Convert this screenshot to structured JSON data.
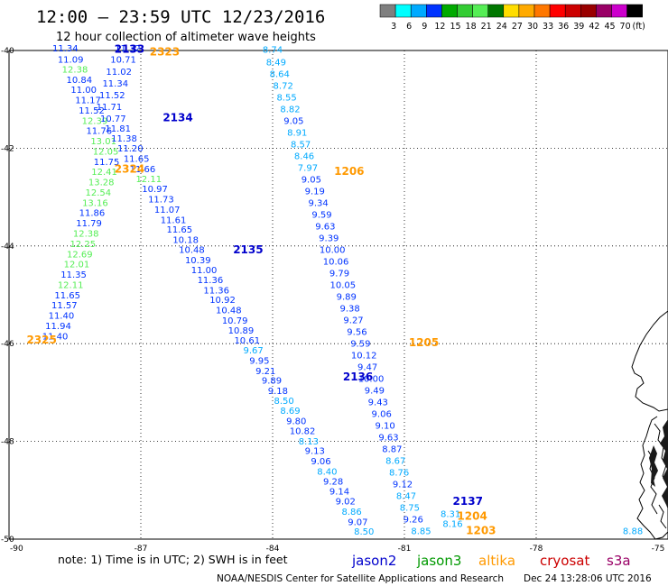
{
  "title": "12:00 – 23:59 UTC 12/23/2016",
  "subtitle": "12 hour collection of altimeter wave heights",
  "colorbar": {
    "colors": [
      "#7f7f7f",
      "#00ffff",
      "#00aaff",
      "#0033ff",
      "#00aa00",
      "#33cc33",
      "#55ee55",
      "#007700",
      "#ffdd00",
      "#ffaa00",
      "#ff7700",
      "#ff0000",
      "#cc0000",
      "#990000",
      "#990066",
      "#cc00cc",
      "#000000"
    ],
    "labels": [
      "3",
      "6",
      "9",
      "12",
      "15",
      "18",
      "21",
      "24",
      "27",
      "30",
      "33",
      "36",
      "39",
      "42",
      "45",
      "70",
      "(ft)"
    ]
  },
  "note": "note: 1) Time is in UTC; 2) SWH is in feet",
  "legend": [
    {
      "label": "jason2",
      "color": "#0000cc"
    },
    {
      "label": "jason3",
      "color": "#009900"
    },
    {
      "label": "altika",
      "color": "#ff9900"
    },
    {
      "label": "cryosat",
      "color": "#cc0000"
    },
    {
      "label": "s3a",
      "color": "#990066"
    }
  ],
  "credit": "NOAA/NESDIS Center for Satellite Applications and Research",
  "timestamp": "Dec 24 13:28:06 UTC 2016",
  "chart_data": {
    "type": "scatter",
    "xlim": [
      -90,
      -75
    ],
    "ylim": [
      -50,
      -40
    ],
    "x_ticks": [
      -90,
      -87,
      -84,
      -81,
      -78,
      -75
    ],
    "y_ticks": [
      -40,
      -42,
      -44,
      -46,
      -48,
      -50
    ],
    "x_tick_labels": [
      "-90",
      "-87",
      "-84",
      "-81",
      "-78",
      "-75"
    ],
    "y_tick_labels": [
      "-40",
      "-42",
      "-44",
      "-46",
      "-48",
      "-50"
    ],
    "grid": true,
    "pass_labels": [
      {
        "label": "2133",
        "sat": "jason2",
        "lon": -87.6,
        "lat": -40.05
      },
      {
        "label": "2323",
        "sat": "altika",
        "lon": -86.8,
        "lat": -40.1
      },
      {
        "label": "2134",
        "sat": "jason2",
        "lon": -86.5,
        "lat": -41.45
      },
      {
        "label": "2324",
        "sat": "altika",
        "lon": -87.6,
        "lat": -42.5
      },
      {
        "label": "1206",
        "sat": "altika",
        "lon": -82.6,
        "lat": -42.55
      },
      {
        "label": "2135",
        "sat": "jason2",
        "lon": -84.9,
        "lat": -44.15
      },
      {
        "label": "2325",
        "sat": "altika",
        "lon": -89.6,
        "lat": -46.0
      },
      {
        "label": "1205",
        "sat": "altika",
        "lon": -80.9,
        "lat": -46.05
      },
      {
        "label": "2136",
        "sat": "jason2",
        "lon": -82.4,
        "lat": -46.75
      },
      {
        "label": "2137",
        "sat": "jason2",
        "lon": -79.9,
        "lat": -49.3
      },
      {
        "label": "1204",
        "sat": "altika",
        "lon": -79.8,
        "lat": -49.6
      },
      {
        "label": "1203",
        "sat": "altika",
        "lon": -79.6,
        "lat": -49.9
      }
    ],
    "points": [
      {
        "sat": "jason2",
        "lon": -88.72,
        "lat": -40.02,
        "swh": "11.34",
        "color": "#0033ff"
      },
      {
        "sat": "jason2",
        "lon": -88.6,
        "lat": -40.25,
        "swh": "11.09",
        "color": "#0033ff"
      },
      {
        "sat": "jason3",
        "lon": -88.5,
        "lat": -40.45,
        "swh": "12.38",
        "color": "#55ee55"
      },
      {
        "sat": "jason2",
        "lon": -88.4,
        "lat": -40.66,
        "swh": "10.84",
        "color": "#0033ff"
      },
      {
        "sat": "jason2",
        "lon": -88.3,
        "lat": -40.87,
        "swh": "11.00",
        "color": "#0033ff"
      },
      {
        "sat": "jason2",
        "lon": -88.2,
        "lat": -41.08,
        "swh": "11.17",
        "color": "#0033ff"
      },
      {
        "sat": "jason2",
        "lon": -88.12,
        "lat": -41.29,
        "swh": "11.52",
        "color": "#0033ff"
      },
      {
        "sat": "jason3",
        "lon": -88.05,
        "lat": -41.5,
        "swh": "12.39",
        "color": "#55ee55"
      },
      {
        "sat": "jason2",
        "lon": -87.95,
        "lat": -41.71,
        "swh": "11.76",
        "color": "#0033ff"
      },
      {
        "sat": "jason3",
        "lon": -87.85,
        "lat": -41.92,
        "swh": "13.01",
        "color": "#55ee55"
      },
      {
        "sat": "jason3",
        "lon": -87.8,
        "lat": -42.13,
        "swh": "12.05",
        "color": "#55ee55"
      },
      {
        "sat": "jason2",
        "lon": -87.78,
        "lat": -42.34,
        "swh": "11.75",
        "color": "#0033ff"
      },
      {
        "sat": "jason3",
        "lon": -87.83,
        "lat": -42.55,
        "swh": "12.41",
        "color": "#55ee55"
      },
      {
        "sat": "jason3",
        "lon": -87.9,
        "lat": -42.76,
        "swh": "13.28",
        "color": "#55ee55"
      },
      {
        "sat": "jason3",
        "lon": -87.97,
        "lat": -42.97,
        "swh": "12.54",
        "color": "#55ee55"
      },
      {
        "sat": "jason3",
        "lon": -88.04,
        "lat": -43.18,
        "swh": "13.16",
        "color": "#55ee55"
      },
      {
        "sat": "jason2",
        "lon": -88.11,
        "lat": -43.39,
        "swh": "11.86",
        "color": "#0033ff"
      },
      {
        "sat": "jason2",
        "lon": -88.18,
        "lat": -43.6,
        "swh": "11.79",
        "color": "#0033ff"
      },
      {
        "sat": "jason3",
        "lon": -88.25,
        "lat": -43.81,
        "swh": "12.38",
        "color": "#55ee55"
      },
      {
        "sat": "jason3",
        "lon": -88.32,
        "lat": -44.02,
        "swh": "12.25",
        "color": "#55ee55"
      },
      {
        "sat": "jason3",
        "lon": -88.39,
        "lat": -44.23,
        "swh": "12.69",
        "color": "#55ee55"
      },
      {
        "sat": "jason3",
        "lon": -88.46,
        "lat": -44.44,
        "swh": "12.01",
        "color": "#55ee55"
      },
      {
        "sat": "jason2",
        "lon": -88.53,
        "lat": -44.65,
        "swh": "11.35",
        "color": "#0033ff"
      },
      {
        "sat": "jason3",
        "lon": -88.6,
        "lat": -44.86,
        "swh": "12.11",
        "color": "#55ee55"
      },
      {
        "sat": "jason2",
        "lon": -88.67,
        "lat": -45.07,
        "swh": "11.65",
        "color": "#0033ff"
      },
      {
        "sat": "jason2",
        "lon": -88.74,
        "lat": -45.28,
        "swh": "11.57",
        "color": "#0033ff"
      },
      {
        "sat": "jason2",
        "lon": -88.81,
        "lat": -45.49,
        "swh": "11.40",
        "color": "#0033ff"
      },
      {
        "sat": "jason2",
        "lon": -88.88,
        "lat": -45.7,
        "swh": "11.94",
        "color": "#0033ff"
      },
      {
        "sat": "jason2",
        "lon": -88.95,
        "lat": -45.91,
        "swh": "11.40",
        "color": "#0033ff"
      },
      {
        "sat": "jason2",
        "lon": -87.3,
        "lat": -40.02,
        "swh": "11.32",
        "color": "#0033ff"
      },
      {
        "sat": "jason2",
        "lon": -87.4,
        "lat": -40.25,
        "swh": "10.71",
        "color": "#0033ff"
      },
      {
        "sat": "jason2",
        "lon": -87.5,
        "lat": -40.5,
        "swh": "11.02",
        "color": "#0033ff"
      },
      {
        "sat": "jason2",
        "lon": -87.58,
        "lat": -40.74,
        "swh": "11.34",
        "color": "#0033ff"
      },
      {
        "sat": "jason2",
        "lon": -87.65,
        "lat": -40.98,
        "swh": "11.52",
        "color": "#0033ff"
      },
      {
        "sat": "jason2",
        "lon": -87.72,
        "lat": -41.22,
        "swh": "11.71",
        "color": "#0033ff"
      },
      {
        "sat": "jason2",
        "lon": -87.63,
        "lat": -41.46,
        "swh": "10.77",
        "color": "#0033ff"
      },
      {
        "sat": "jason2",
        "lon": -87.52,
        "lat": -41.66,
        "swh": "11.81",
        "color": "#0033ff"
      },
      {
        "sat": "jason2",
        "lon": -87.38,
        "lat": -41.86,
        "swh": "11.38",
        "color": "#0033ff"
      },
      {
        "sat": "jason2",
        "lon": -87.24,
        "lat": -42.07,
        "swh": "11.20",
        "color": "#0033ff"
      },
      {
        "sat": "jason2",
        "lon": -87.1,
        "lat": -42.28,
        "swh": "11.65",
        "color": "#0033ff"
      },
      {
        "sat": "jason2",
        "lon": -86.96,
        "lat": -42.49,
        "swh": "11.66",
        "color": "#0033ff"
      },
      {
        "sat": "jason3",
        "lon": -86.82,
        "lat": -42.69,
        "swh": "12.11",
        "color": "#55ee55"
      },
      {
        "sat": "jason2",
        "lon": -86.68,
        "lat": -42.9,
        "swh": "10.97",
        "color": "#0033ff"
      },
      {
        "sat": "jason2",
        "lon": -86.54,
        "lat": -43.11,
        "swh": "11.73",
        "color": "#0033ff"
      },
      {
        "sat": "jason2",
        "lon": -86.4,
        "lat": -43.32,
        "swh": "11.07",
        "color": "#0033ff"
      },
      {
        "sat": "jason2",
        "lon": -86.26,
        "lat": -43.53,
        "swh": "11.61",
        "color": "#0033ff"
      },
      {
        "sat": "jason2",
        "lon": -86.12,
        "lat": -43.73,
        "swh": "11.65",
        "color": "#0033ff"
      },
      {
        "sat": "jason2",
        "lon": -85.98,
        "lat": -43.94,
        "swh": "10.18",
        "color": "#0033ff"
      },
      {
        "sat": "jason2",
        "lon": -85.84,
        "lat": -44.14,
        "swh": "10.48",
        "color": "#0033ff"
      },
      {
        "sat": "jason2",
        "lon": -85.7,
        "lat": -44.35,
        "swh": "10.39",
        "color": "#0033ff"
      },
      {
        "sat": "jason2",
        "lon": -85.56,
        "lat": -44.56,
        "swh": "11.00",
        "color": "#0033ff"
      },
      {
        "sat": "jason2",
        "lon": -85.42,
        "lat": -44.76,
        "swh": "11.36",
        "color": "#0033ff"
      },
      {
        "sat": "jason2",
        "lon": -85.28,
        "lat": -44.97,
        "swh": "11.36",
        "color": "#0033ff"
      },
      {
        "sat": "jason2",
        "lon": -85.14,
        "lat": -45.17,
        "swh": "10.92",
        "color": "#0033ff"
      },
      {
        "sat": "jason2",
        "lon": -85.0,
        "lat": -45.38,
        "swh": "10.48",
        "color": "#0033ff"
      },
      {
        "sat": "jason2",
        "lon": -84.86,
        "lat": -45.59,
        "swh": "10.79",
        "color": "#0033ff"
      },
      {
        "sat": "jason2",
        "lon": -84.72,
        "lat": -45.79,
        "swh": "10.89",
        "color": "#0033ff"
      },
      {
        "sat": "jason2",
        "lon": -84.58,
        "lat": -46.0,
        "swh": "10.61",
        "color": "#0033ff"
      },
      {
        "sat": "altika",
        "lon": -84.44,
        "lat": -46.2,
        "swh": "9.67",
        "color": "#00aaff"
      },
      {
        "sat": "jason2",
        "lon": -84.3,
        "lat": -46.41,
        "swh": "9.95",
        "color": "#0033ff"
      },
      {
        "sat": "jason2",
        "lon": -84.16,
        "lat": -46.62,
        "swh": "9.21",
        "color": "#0033ff"
      },
      {
        "sat": "jason2",
        "lon": -84.02,
        "lat": -46.82,
        "swh": "9.89",
        "color": "#0033ff"
      },
      {
        "sat": "jason2",
        "lon": -83.88,
        "lat": -47.03,
        "swh": "9.18",
        "color": "#0033ff"
      },
      {
        "sat": "altika",
        "lon": -83.74,
        "lat": -47.23,
        "swh": "8.50",
        "color": "#00aaff"
      },
      {
        "sat": "altika",
        "lon": -83.6,
        "lat": -47.44,
        "swh": "8.69",
        "color": "#00aaff"
      },
      {
        "sat": "jason2",
        "lon": -83.46,
        "lat": -47.65,
        "swh": "9.80",
        "color": "#0033ff"
      },
      {
        "sat": "jason2",
        "lon": -83.32,
        "lat": -47.85,
        "swh": "10.82",
        "color": "#0033ff"
      },
      {
        "sat": "altika",
        "lon": -83.18,
        "lat": -48.06,
        "swh": "8.13",
        "color": "#00aaff"
      },
      {
        "sat": "jason2",
        "lon": -83.04,
        "lat": -48.26,
        "swh": "9.13",
        "color": "#0033ff"
      },
      {
        "sat": "jason2",
        "lon": -82.9,
        "lat": -48.47,
        "swh": "9.06",
        "color": "#0033ff"
      },
      {
        "sat": "altika",
        "lon": -82.76,
        "lat": -48.68,
        "swh": "8.40",
        "color": "#00aaff"
      },
      {
        "sat": "jason2",
        "lon": -82.62,
        "lat": -48.88,
        "swh": "9.28",
        "color": "#0033ff"
      },
      {
        "sat": "jason2",
        "lon": -82.48,
        "lat": -49.09,
        "swh": "9.14",
        "color": "#0033ff"
      },
      {
        "sat": "jason2",
        "lon": -82.34,
        "lat": -49.29,
        "swh": "9.02",
        "color": "#0033ff"
      },
      {
        "sat": "altika",
        "lon": -82.2,
        "lat": -49.5,
        "swh": "8.86",
        "color": "#00aaff"
      },
      {
        "sat": "jason2",
        "lon": -82.06,
        "lat": -49.71,
        "swh": "9.07",
        "color": "#0033ff"
      },
      {
        "sat": "altika",
        "lon": -81.92,
        "lat": -49.91,
        "swh": "8.50",
        "color": "#00aaff"
      },
      {
        "sat": "altika",
        "lon": -84.0,
        "lat": -40.05,
        "swh": "8.74",
        "color": "#00aaff"
      },
      {
        "sat": "altika",
        "lon": -83.92,
        "lat": -40.3,
        "swh": "8.49",
        "color": "#00aaff"
      },
      {
        "sat": "altika",
        "lon": -83.84,
        "lat": -40.54,
        "swh": "8.64",
        "color": "#00aaff"
      },
      {
        "sat": "altika",
        "lon": -83.76,
        "lat": -40.78,
        "swh": "8.72",
        "color": "#00aaff"
      },
      {
        "sat": "altika",
        "lon": -83.68,
        "lat": -41.02,
        "swh": "8.55",
        "color": "#00aaff"
      },
      {
        "sat": "altika",
        "lon": -83.6,
        "lat": -41.26,
        "swh": "8.82",
        "color": "#00aaff"
      },
      {
        "sat": "jason2",
        "lon": -83.52,
        "lat": -41.5,
        "swh": "9.05",
        "color": "#0033ff"
      },
      {
        "sat": "altika",
        "lon": -83.44,
        "lat": -41.74,
        "swh": "8.91",
        "color": "#00aaff"
      },
      {
        "sat": "altika",
        "lon": -83.36,
        "lat": -41.98,
        "swh": "8.57",
        "color": "#00aaff"
      },
      {
        "sat": "altika",
        "lon": -83.28,
        "lat": -42.22,
        "swh": "8.46",
        "color": "#00aaff"
      },
      {
        "sat": "altika",
        "lon": -83.2,
        "lat": -42.46,
        "swh": "7.97",
        "color": "#00aaff"
      },
      {
        "sat": "jason2",
        "lon": -83.12,
        "lat": -42.7,
        "swh": "9.05",
        "color": "#0033ff"
      },
      {
        "sat": "jason2",
        "lon": -83.04,
        "lat": -42.94,
        "swh": "9.19",
        "color": "#0033ff"
      },
      {
        "sat": "jason2",
        "lon": -82.96,
        "lat": -43.18,
        "swh": "9.34",
        "color": "#0033ff"
      },
      {
        "sat": "jason2",
        "lon": -82.88,
        "lat": -43.42,
        "swh": "9.59",
        "color": "#0033ff"
      },
      {
        "sat": "jason2",
        "lon": -82.8,
        "lat": -43.66,
        "swh": "9.63",
        "color": "#0033ff"
      },
      {
        "sat": "jason2",
        "lon": -82.72,
        "lat": -43.9,
        "swh": "9.39",
        "color": "#0033ff"
      },
      {
        "sat": "jason2",
        "lon": -82.64,
        "lat": -44.14,
        "swh": "10.00",
        "color": "#0033ff"
      },
      {
        "sat": "jason2",
        "lon": -82.56,
        "lat": -44.38,
        "swh": "10.06",
        "color": "#0033ff"
      },
      {
        "sat": "jason2",
        "lon": -82.48,
        "lat": -44.62,
        "swh": "9.79",
        "color": "#0033ff"
      },
      {
        "sat": "jason2",
        "lon": -82.4,
        "lat": -44.86,
        "swh": "10.05",
        "color": "#0033ff"
      },
      {
        "sat": "jason2",
        "lon": -82.32,
        "lat": -45.1,
        "swh": "9.89",
        "color": "#0033ff"
      },
      {
        "sat": "jason2",
        "lon": -82.24,
        "lat": -45.34,
        "swh": "9.38",
        "color": "#0033ff"
      },
      {
        "sat": "jason2",
        "lon": -82.16,
        "lat": -45.58,
        "swh": "9.27",
        "color": "#0033ff"
      },
      {
        "sat": "jason2",
        "lon": -82.08,
        "lat": -45.82,
        "swh": "9.56",
        "color": "#0033ff"
      },
      {
        "sat": "jason2",
        "lon": -82.0,
        "lat": -46.06,
        "swh": "9.59",
        "color": "#0033ff"
      },
      {
        "sat": "jason2",
        "lon": -81.92,
        "lat": -46.3,
        "swh": "10.12",
        "color": "#0033ff"
      },
      {
        "sat": "jason2",
        "lon": -81.84,
        "lat": -46.54,
        "swh": "9.47",
        "color": "#0033ff"
      },
      {
        "sat": "jason2",
        "lon": -81.76,
        "lat": -46.78,
        "swh": "10.00",
        "color": "#0033ff"
      },
      {
        "sat": "jason2",
        "lon": -81.68,
        "lat": -47.02,
        "swh": "9.49",
        "color": "#0033ff"
      },
      {
        "sat": "jason2",
        "lon": -81.6,
        "lat": -47.26,
        "swh": "9.43",
        "color": "#0033ff"
      },
      {
        "sat": "jason2",
        "lon": -81.52,
        "lat": -47.5,
        "swh": "9.06",
        "color": "#0033ff"
      },
      {
        "sat": "jason2",
        "lon": -81.44,
        "lat": -47.74,
        "swh": "9.10",
        "color": "#0033ff"
      },
      {
        "sat": "jason2",
        "lon": -81.36,
        "lat": -47.98,
        "swh": "9.63",
        "color": "#0033ff"
      },
      {
        "sat": "jason2",
        "lon": -81.28,
        "lat": -48.22,
        "swh": "8.87",
        "color": "#0033ff"
      },
      {
        "sat": "altika",
        "lon": -81.2,
        "lat": -48.46,
        "swh": "8.67",
        "color": "#00aaff"
      },
      {
        "sat": "altika",
        "lon": -81.12,
        "lat": -48.7,
        "swh": "8.76",
        "color": "#00aaff"
      },
      {
        "sat": "jason2",
        "lon": -81.04,
        "lat": -48.94,
        "swh": "9.12",
        "color": "#0033ff"
      },
      {
        "sat": "altika",
        "lon": -80.96,
        "lat": -49.18,
        "swh": "8.47",
        "color": "#00aaff"
      },
      {
        "sat": "altika",
        "lon": -80.88,
        "lat": -49.42,
        "swh": "8.75",
        "color": "#00aaff"
      },
      {
        "sat": "jason2",
        "lon": -80.8,
        "lat": -49.66,
        "swh": "9.26",
        "color": "#0033ff"
      },
      {
        "sat": "altika",
        "lon": -80.62,
        "lat": -49.9,
        "swh": "8.85",
        "color": "#00aaff"
      },
      {
        "sat": "altika",
        "lon": -79.9,
        "lat": -49.75,
        "swh": "8.16",
        "color": "#00aaff"
      },
      {
        "sat": "altika",
        "lon": -79.95,
        "lat": -49.55,
        "swh": "8.31",
        "color": "#00aaff"
      },
      {
        "sat": "altika",
        "lon": -75.8,
        "lat": -49.9,
        "swh": "8.88",
        "color": "#00aaff"
      }
    ]
  }
}
